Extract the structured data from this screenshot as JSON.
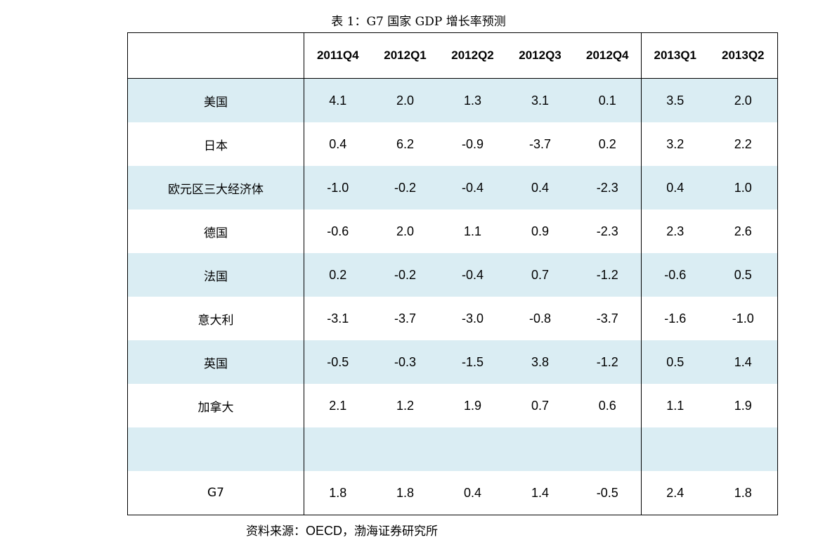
{
  "title": "表 1：G7 国家 GDP 增长率预测",
  "table": {
    "corner": "",
    "columns": [
      "2011Q4",
      "2012Q1",
      "2012Q2",
      "2012Q3",
      "2012Q4",
      "2013Q1",
      "2013Q2"
    ],
    "rows": [
      {
        "label": "美国",
        "values": [
          "4.1",
          "2.0",
          "1.3",
          "3.1",
          "0.1",
          "3.5",
          "2.0"
        ]
      },
      {
        "label": "日本",
        "values": [
          "0.4",
          "6.2",
          "-0.9",
          "-3.7",
          "0.2",
          "3.2",
          "2.2"
        ]
      },
      {
        "label": "欧元区三大经济体",
        "values": [
          "-1.0",
          "-0.2",
          "-0.4",
          "0.4",
          "-2.3",
          "0.4",
          "1.0"
        ]
      },
      {
        "label": "德国",
        "values": [
          "-0.6",
          "2.0",
          "1.1",
          "0.9",
          "-2.3",
          "2.3",
          "2.6"
        ]
      },
      {
        "label": "法国",
        "values": [
          "0.2",
          "-0.2",
          "-0.4",
          "0.7",
          "-1.2",
          "-0.6",
          "0.5"
        ]
      },
      {
        "label": "意大利",
        "values": [
          "-3.1",
          "-3.7",
          "-3.0",
          "-0.8",
          "-3.7",
          "-1.6",
          "-1.0"
        ]
      },
      {
        "label": "英国",
        "values": [
          "-0.5",
          "-0.3",
          "-1.5",
          "3.8",
          "-1.2",
          "0.5",
          "1.4"
        ]
      },
      {
        "label": "加拿大",
        "values": [
          "2.1",
          "1.2",
          "1.9",
          "0.7",
          "0.6",
          "1.1",
          "1.9"
        ]
      },
      {
        "label": "",
        "values": [
          "",
          "",
          "",
          "",
          "",
          "",
          ""
        ]
      },
      {
        "label": "G7",
        "values": [
          "1.8",
          "1.8",
          "0.4",
          "1.4",
          "-0.5",
          "2.4",
          "1.8"
        ]
      }
    ]
  },
  "source": {
    "prefix": "资料来源：",
    "org": "OECD",
    "suffix": "，渤海证券研究所"
  },
  "colors": {
    "shade": "#daedf3",
    "border": "#000000"
  }
}
